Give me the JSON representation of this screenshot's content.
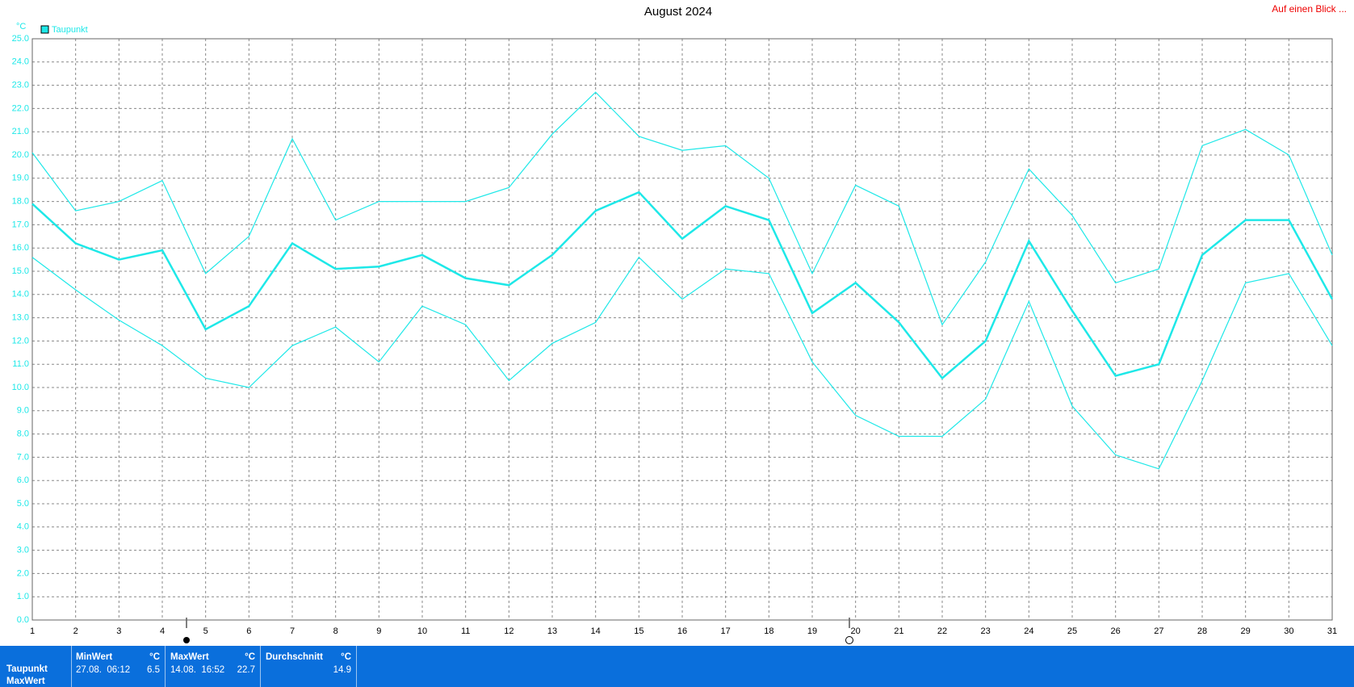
{
  "chart_data": {
    "type": "line",
    "title": "August 2024",
    "y_unit": "°C",
    "corner_link": "Auf einen Blick ...",
    "x": [
      1,
      2,
      3,
      4,
      5,
      6,
      7,
      8,
      9,
      10,
      11,
      12,
      13,
      14,
      15,
      16,
      17,
      18,
      19,
      20,
      21,
      22,
      23,
      24,
      25,
      26,
      27,
      28,
      29,
      30,
      31
    ],
    "series": [
      {
        "name": "Taupunkt",
        "color": "#1ee8e8",
        "values": [
          17.9,
          16.2,
          15.5,
          15.9,
          12.5,
          13.5,
          16.2,
          15.1,
          15.2,
          15.7,
          14.7,
          14.4,
          15.7,
          17.6,
          18.4,
          16.4,
          17.8,
          17.2,
          13.2,
          14.5,
          12.8,
          10.4,
          12.0,
          16.3,
          13.3,
          10.5,
          11.0,
          15.7,
          17.2,
          17.2,
          13.8
        ]
      },
      {
        "color": "#1ee8e8",
        "values": [
          20.1,
          17.6,
          18.0,
          18.9,
          14.9,
          16.5,
          20.7,
          17.2,
          18.0,
          18.0,
          18.0,
          18.6,
          20.9,
          22.7,
          20.8,
          20.2,
          20.4,
          19.0,
          14.9,
          18.7,
          17.8,
          12.7,
          15.4,
          19.4,
          17.4,
          14.5,
          15.1,
          20.4,
          21.1,
          20.0,
          15.7
        ]
      },
      {
        "color": "#1ee8e8",
        "values": [
          15.6,
          14.2,
          12.9,
          11.8,
          10.4,
          10.0,
          11.8,
          12.6,
          11.1,
          13.5,
          12.7,
          10.3,
          11.9,
          12.8,
          15.6,
          13.8,
          15.1,
          14.9,
          11.1,
          8.8,
          7.9,
          7.9,
          9.5,
          13.7,
          9.2,
          7.1,
          6.5,
          10.3,
          14.5,
          14.9,
          11.8
        ]
      }
    ],
    "xlim": [
      1,
      31
    ],
    "xticks": [
      1,
      2,
      3,
      4,
      5,
      6,
      7,
      8,
      9,
      10,
      11,
      12,
      13,
      14,
      15,
      16,
      17,
      18,
      19,
      20,
      21,
      22,
      23,
      24,
      25,
      26,
      27,
      28,
      29,
      30,
      31
    ],
    "ylim": [
      0,
      25
    ],
    "yticks": [
      {
        "value": 0,
        "label": "0.0"
      },
      {
        "value": 1,
        "label": "1.0"
      },
      {
        "value": 2,
        "label": "2.0"
      },
      {
        "value": 3,
        "label": "3.0"
      },
      {
        "value": 4,
        "label": "4.0"
      },
      {
        "value": 5,
        "label": "5.0"
      },
      {
        "value": 6,
        "label": "6.0"
      },
      {
        "value": 7,
        "label": "7.0"
      },
      {
        "value": 8,
        "label": "8.0"
      },
      {
        "value": 9,
        "label": "9.0"
      },
      {
        "value": 10,
        "label": "10.0"
      },
      {
        "value": 11,
        "label": "11.0"
      },
      {
        "value": 12,
        "label": "12.0"
      },
      {
        "value": 13,
        "label": "13.0"
      },
      {
        "value": 14,
        "label": "14.0"
      },
      {
        "value": 15,
        "label": "15.0"
      },
      {
        "value": 16,
        "label": "16.0"
      },
      {
        "value": 17,
        "label": "17.0"
      },
      {
        "value": 18,
        "label": "18.0"
      },
      {
        "value": 19,
        "label": "19.0"
      },
      {
        "value": 20,
        "label": "20.0"
      },
      {
        "value": 21,
        "label": "21.0"
      },
      {
        "value": 22,
        "label": "22.0"
      },
      {
        "value": 23,
        "label": "23.0"
      },
      {
        "value": 24,
        "label": "24.0"
      },
      {
        "value": 25,
        "label": "25.0"
      }
    ],
    "grid": true
  },
  "summary": {
    "row_labels": [
      "Taupunkt",
      "MaxWert"
    ],
    "columns": [
      {
        "header": "MinWert",
        "unit": "°C",
        "time": "27.08.  06:12",
        "value": 6.5
      },
      {
        "header": "MaxWert",
        "unit": "°C",
        "time": "14.08.  16:52",
        "value": 22.7
      },
      {
        "header": "Durchschnitt",
        "unit": "°C",
        "value": 14.9
      }
    ]
  }
}
